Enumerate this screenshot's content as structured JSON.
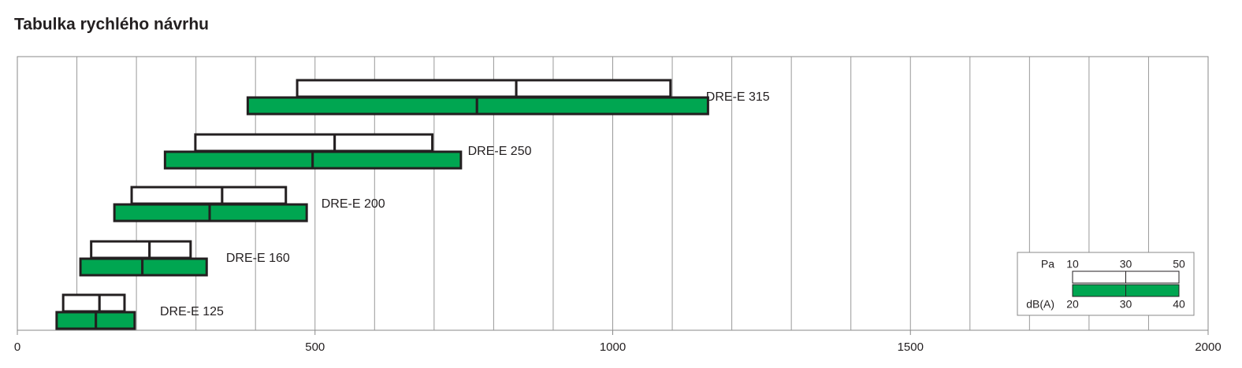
{
  "chart_data": {
    "type": "range-bar",
    "title": "Tabulka rychlého návrhu",
    "categories": [
      "DRE-E 315",
      "DRE-E 250",
      "DRE-E 200",
      "DRE-E 160",
      "DRE-E 125"
    ],
    "series": [
      {
        "name": "Pa",
        "color": "#ffffff",
        "legend_ticks": [
          10,
          30,
          50
        ],
        "values": [
          [
            470,
            838,
            1097
          ],
          [
            299,
            533,
            697
          ],
          [
            192,
            344,
            451
          ],
          [
            124,
            222,
            291
          ],
          [
            77,
            138,
            180
          ]
        ]
      },
      {
        "name": "dB(A)",
        "color": "#00a651",
        "legend_ticks": [
          20,
          30,
          40
        ],
        "values": [
          [
            387,
            772,
            1160
          ],
          [
            248,
            496,
            745
          ],
          [
            163,
            323,
            486
          ],
          [
            106,
            210,
            318
          ],
          [
            66,
            132,
            197
          ]
        ]
      }
    ],
    "xlim": [
      0,
      2000
    ],
    "xticks": [
      0,
      500,
      1000,
      1500,
      2000
    ],
    "xgrid": [
      100,
      200,
      300,
      400,
      500,
      600,
      700,
      800,
      900,
      1000,
      1100,
      1200,
      1300,
      1400,
      1500,
      1600,
      1700,
      1800,
      1900
    ],
    "legend": "lower right"
  }
}
